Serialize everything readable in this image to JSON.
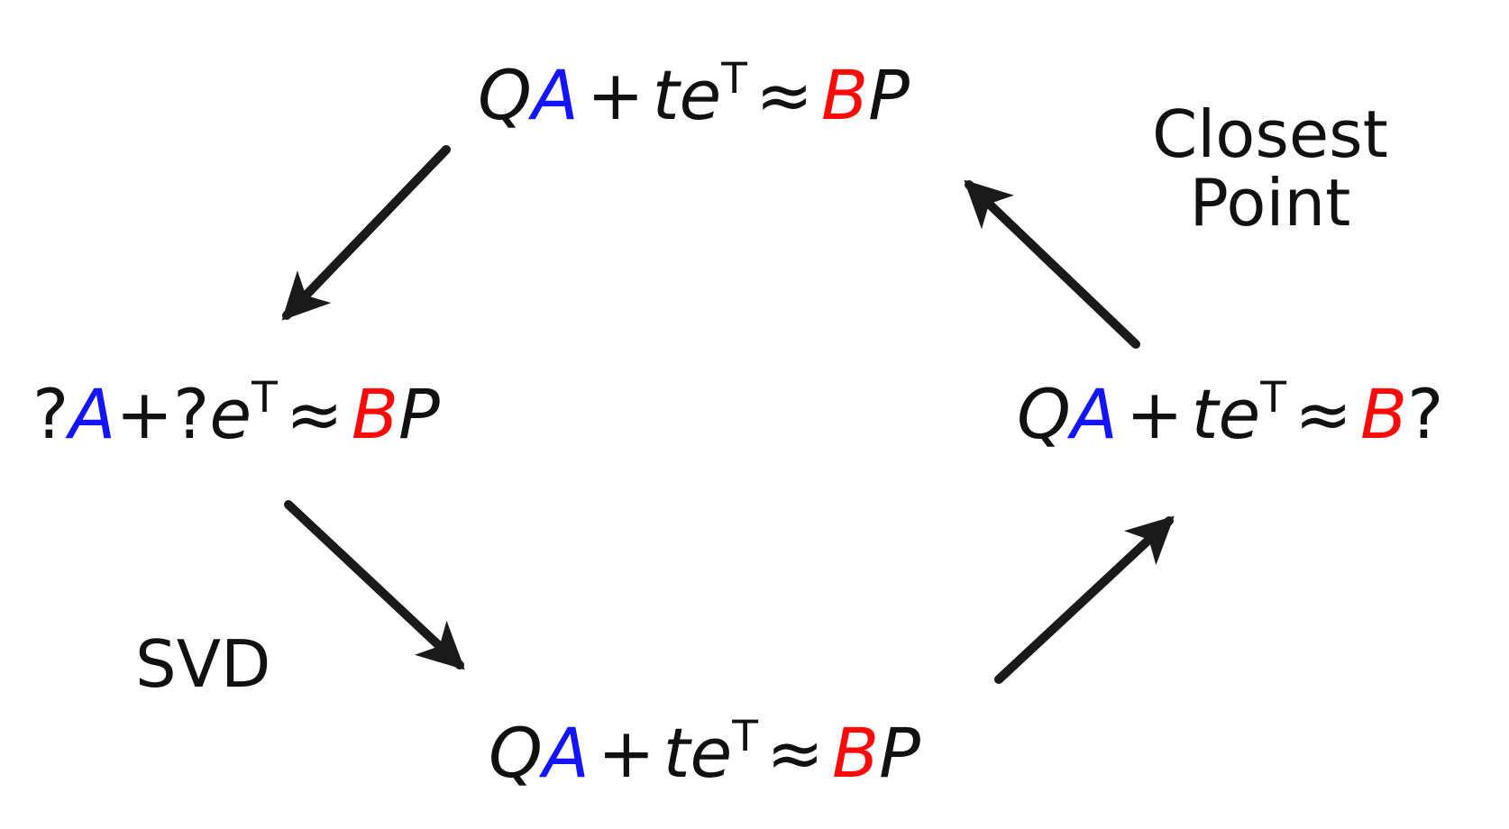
{
  "colors": {
    "ink": "#111111",
    "A_color": "#1414ff",
    "B_color": "#ff0a0a"
  },
  "nodes": {
    "top": [
      {
        "text": "Q",
        "style": "ink"
      },
      {
        "text": "A",
        "style": "A"
      },
      {
        "text": "+",
        "style": "op"
      },
      {
        "text": "te",
        "style": "ink"
      },
      {
        "text": "T",
        "style": "sup"
      },
      {
        "text": "≈",
        "style": "op"
      },
      {
        "text": "B",
        "style": "B"
      },
      {
        "text": "P",
        "style": "ink"
      }
    ],
    "left": [
      {
        "text": "?",
        "style": "plain"
      },
      {
        "text": "A",
        "style": "A"
      },
      {
        "text": "+",
        "style": "plain"
      },
      {
        "text": "?",
        "style": "plain"
      },
      {
        "text": "e",
        "style": "ink"
      },
      {
        "text": "T",
        "style": "sup"
      },
      {
        "text": "≈",
        "style": "op"
      },
      {
        "text": "B",
        "style": "B"
      },
      {
        "text": "P",
        "style": "ink"
      }
    ],
    "right": [
      {
        "text": "Q",
        "style": "ink"
      },
      {
        "text": "A",
        "style": "A"
      },
      {
        "text": "+",
        "style": "op"
      },
      {
        "text": "te",
        "style": "ink"
      },
      {
        "text": "T",
        "style": "sup"
      },
      {
        "text": "≈",
        "style": "op"
      },
      {
        "text": "B",
        "style": "B"
      },
      {
        "text": "?",
        "style": "plain"
      }
    ],
    "bottom": [
      {
        "text": "Q",
        "style": "ink"
      },
      {
        "text": "A",
        "style": "A"
      },
      {
        "text": "+",
        "style": "op"
      },
      {
        "text": "te",
        "style": "ink"
      },
      {
        "text": "T",
        "style": "sup"
      },
      {
        "text": "≈",
        "style": "op"
      },
      {
        "text": "B",
        "style": "B"
      },
      {
        "text": "P",
        "style": "ink"
      }
    ]
  },
  "labels": {
    "closest_point_line1": "Closest",
    "closest_point_line2": "Point",
    "svd": "SVD"
  }
}
